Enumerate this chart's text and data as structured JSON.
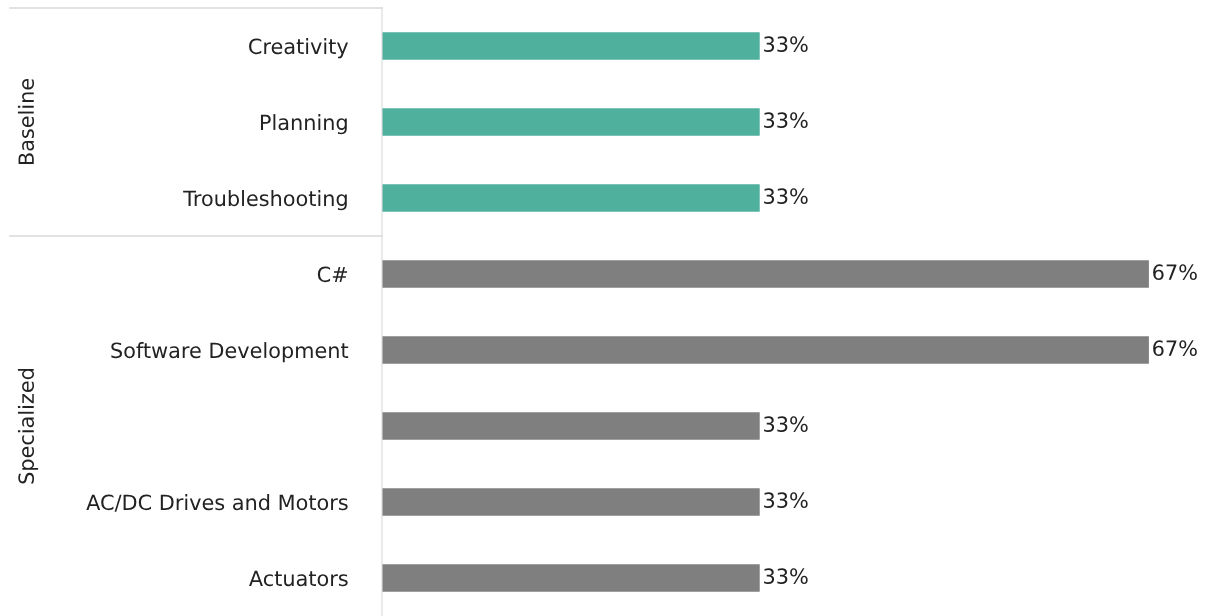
{
  "chart_data": {
    "type": "bar",
    "orientation": "horizontal",
    "categories": [
      "Creativity",
      "Planning",
      "Troubleshooting",
      "C#",
      "Software Development",
      null,
      "AC/DC Drives and Motors",
      "Actuators"
    ],
    "values": [
      33,
      33,
      33,
      67,
      67,
      33,
      33,
      33
    ],
    "colors": [
      "#4fb09e",
      "#4fb09e",
      "#4fb09e",
      "#7f7f7f",
      "#7f7f7f",
      "#7f7f7f",
      "#7f7f7f",
      "#7f7f7f"
    ],
    "value_labels": [
      "33%",
      "33%",
      "33%",
      "67%",
      "67%",
      "33%",
      "33%",
      "33%"
    ],
    "annotations": [
      "Baseline",
      "Specialized"
    ],
    "grid": false,
    "legend": false
  }
}
